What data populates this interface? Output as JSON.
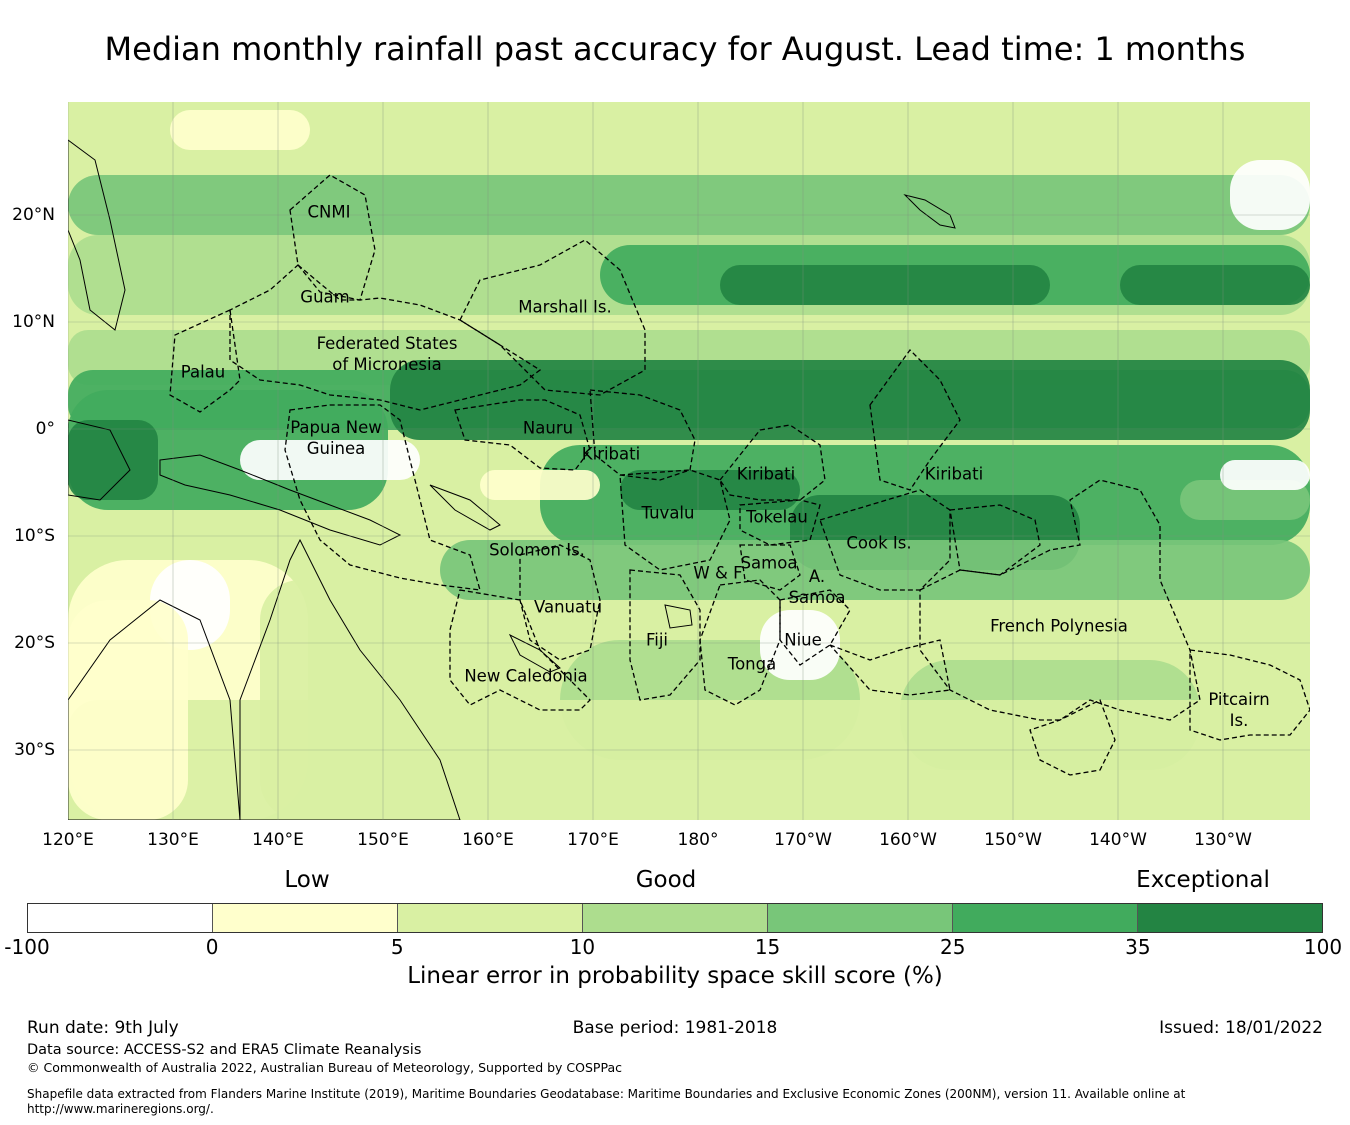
{
  "title": "Median monthly rainfall past accuracy for August. Lead time: 1 months",
  "axes": {
    "lon_labels": [
      "120°E",
      "130°E",
      "140°E",
      "150°E",
      "160°E",
      "170°E",
      "180°",
      "170°W",
      "160°W",
      "150°W",
      "140°W",
      "130°W"
    ],
    "lat_labels": [
      "20°N",
      "10°N",
      "0°",
      "10°S",
      "20°S",
      "30°S"
    ]
  },
  "regions": [
    {
      "name": "CNMI"
    },
    {
      "name": "Guam"
    },
    {
      "name": "Marshall Is."
    },
    {
      "name": "Federated States\nof Micronesia"
    },
    {
      "name": "Palau"
    },
    {
      "name": "Papua New\nGuinea"
    },
    {
      "name": "Nauru"
    },
    {
      "name": "Kiribati"
    },
    {
      "name": "Kiribati"
    },
    {
      "name": "Kiribati"
    },
    {
      "name": "Tuvalu"
    },
    {
      "name": "Tokelau"
    },
    {
      "name": "Solomon Is."
    },
    {
      "name": "Cook Is."
    },
    {
      "name": "Samoa"
    },
    {
      "name": "W & F"
    },
    {
      "name": "A.\nSamoa"
    },
    {
      "name": "Vanuatu"
    },
    {
      "name": "Fiji"
    },
    {
      "name": "Niue"
    },
    {
      "name": "Tonga"
    },
    {
      "name": "New Caledonia"
    },
    {
      "name": "French Polynesia"
    },
    {
      "name": "Pitcairn\nIs."
    }
  ],
  "colorbar": {
    "category_labels": [
      "Low",
      "Good",
      "Exceptional"
    ],
    "ticks": [
      "-100",
      "0",
      "5",
      "10",
      "15",
      "25",
      "35",
      "100"
    ],
    "colors": [
      "#ffffff",
      "#ffffcc",
      "#d9f0a3",
      "#addd8e",
      "#78c679",
      "#41ab5d",
      "#238443"
    ],
    "label": "Linear error in probability space skill score (%)"
  },
  "footer": {
    "run_date": "Run date: 9th July",
    "base_period": "Base period: 1981-2018",
    "issued": "Issued: 18/01/2022",
    "data_source": "Data source: ACCESS-S2 and ERA5 Climate Reanalysis",
    "copyright": "© Commonwealth of Australia 2022, Australian Bureau of Meteorology, Supported by COSPPac",
    "shapefile_1": "Shapefile data extracted from Flanders Marine Institute (2019), Maritime Boundaries Geodatabase: Maritime Boundaries and Exclusive Economic Zones (200NM), version 11. Available online at",
    "shapefile_2": "http://www.marineregions.org/."
  }
}
